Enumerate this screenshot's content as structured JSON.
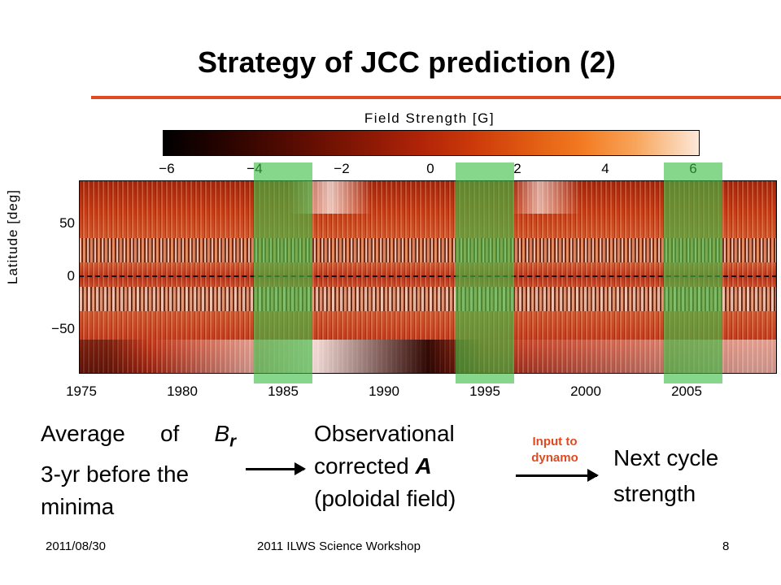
{
  "slide": {
    "title": "Strategy of JCC prediction (2)",
    "accent_color": "#e04a20"
  },
  "figure": {
    "colorbar_title": "Field Strength [G]",
    "colorbar_ticks": [
      "−6",
      "−4",
      "−2",
      "0",
      "2",
      "4",
      "6"
    ],
    "y_axis_title": "Latitude [deg]",
    "y_ticks": [
      "50",
      "0",
      "−50"
    ],
    "x_ticks": [
      "1975",
      "1980",
      "1985",
      "1990",
      "1995",
      "2000",
      "2005"
    ],
    "highlight_color": "#3cbe46"
  },
  "flow": {
    "step1_line1": "Average of ",
    "step1_symbol": "B",
    "step1_subscript": "r",
    "step1_line2": "3-yr before the",
    "step1_line3": "minima",
    "step2_line1": "Observational",
    "step2_line2_prefix": "corrected ",
    "step2_line2_symbol": "A",
    "step2_line3": "(poloidal field)",
    "arrow_label_line1": "Input to",
    "arrow_label_line2": "dynamo",
    "step3_line1": "Next cycle",
    "step3_line2": "strength"
  },
  "footer": {
    "date": "2011/08/30",
    "event": "2011 ILWS Science Workshop",
    "page": "8"
  }
}
